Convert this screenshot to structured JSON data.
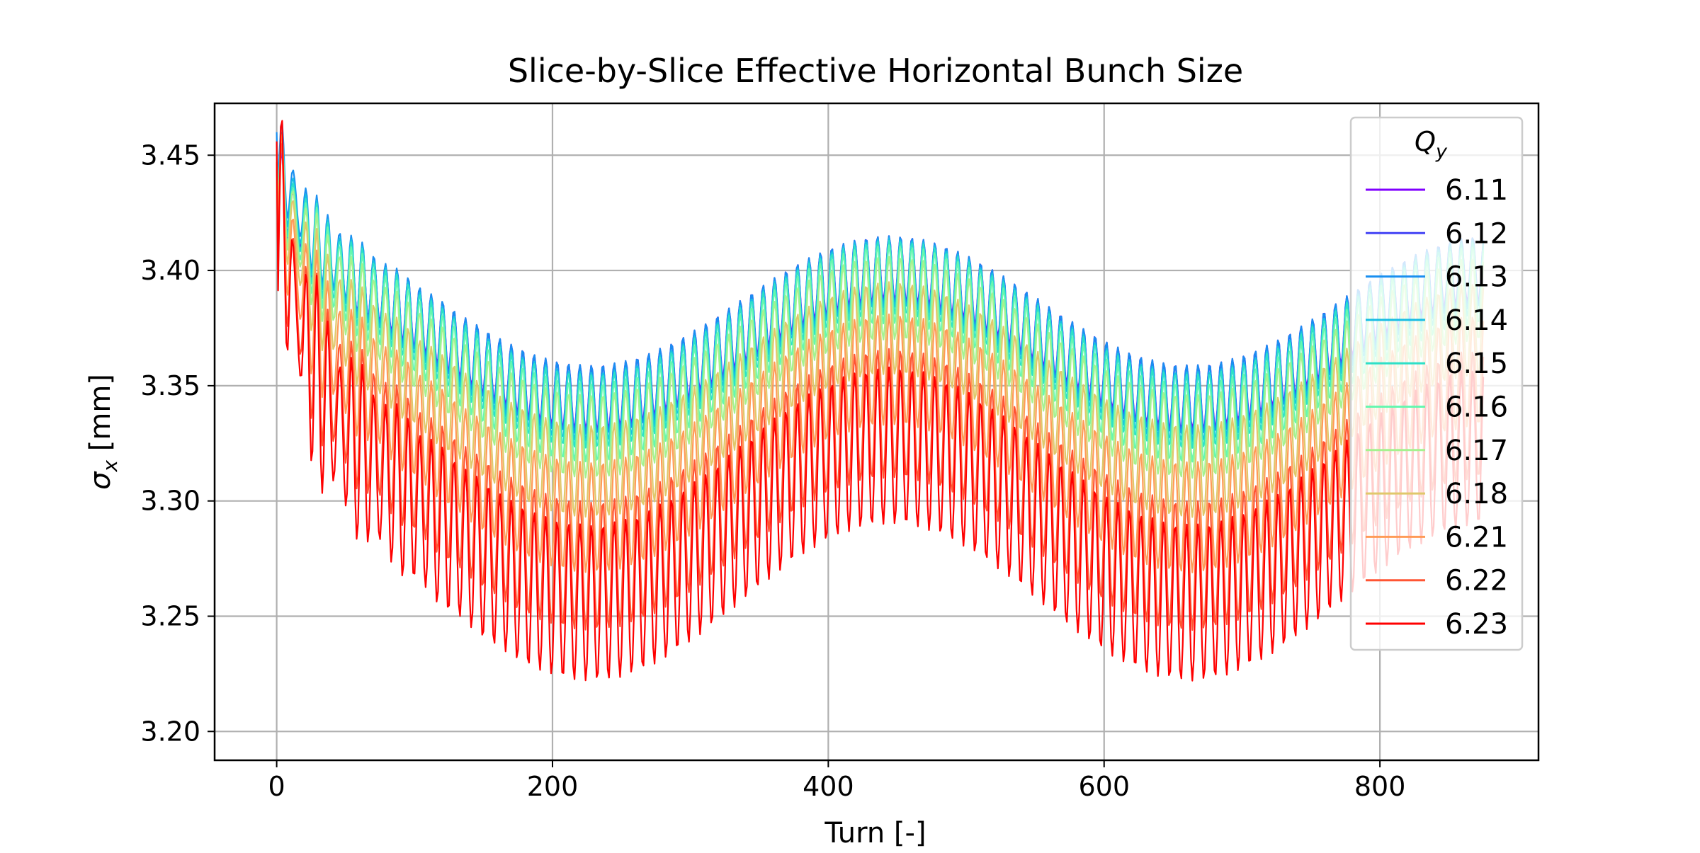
{
  "chart_data": {
    "type": "line",
    "title": "Slice-by-Slice Effective Horizontal Bunch Size",
    "xlabel": "Turn [-]",
    "ylabel": "σ",
    "ylabel_sub": "x",
    "ylabel_unit": " [mm]",
    "xlim": [
      -45,
      915
    ],
    "ylim": [
      3.1875,
      3.4725
    ],
    "xticks": [
      0,
      200,
      400,
      600,
      800
    ],
    "yticks": [
      3.2,
      3.25,
      3.3,
      3.35,
      3.4,
      3.45
    ],
    "xtick_labels": [
      "0",
      "200",
      "400",
      "600",
      "800"
    ],
    "ytick_labels": [
      "3.20",
      "3.25",
      "3.30",
      "3.35",
      "3.40",
      "3.45"
    ],
    "grid": true,
    "legend": {
      "title": "Q",
      "title_sub": "y",
      "placement": "top-right"
    },
    "turns": 875,
    "oscillation_period_turns": 8.3,
    "series": [
      {
        "name": "6.11",
        "color": "#8000ff",
        "start": 3.445,
        "slow_mean": 3.373,
        "slow_amp": 0.028,
        "fast_amp": 0.014,
        "init_amp": 0.012
      },
      {
        "name": "6.12",
        "color": "#4444f5",
        "start": 3.448,
        "slow_mean": 3.372,
        "slow_amp": 0.028,
        "fast_amp": 0.014,
        "init_amp": 0.012
      },
      {
        "name": "6.13",
        "color": "#1a8ff0",
        "start": 3.46,
        "slow_mean": 3.372,
        "slow_amp": 0.028,
        "fast_amp": 0.015,
        "init_amp": 0.013
      },
      {
        "name": "6.14",
        "color": "#18bde3",
        "start": 3.455,
        "slow_mean": 3.37,
        "slow_amp": 0.029,
        "fast_amp": 0.015,
        "init_amp": 0.013
      },
      {
        "name": "6.15",
        "color": "#2ee0c8",
        "start": 3.452,
        "slow_mean": 3.368,
        "slow_amp": 0.029,
        "fast_amp": 0.016,
        "init_amp": 0.014
      },
      {
        "name": "6.16",
        "color": "#66f7b0",
        "start": 3.45,
        "slow_mean": 3.364,
        "slow_amp": 0.03,
        "fast_amp": 0.017,
        "init_amp": 0.015
      },
      {
        "name": "6.17",
        "color": "#a6f28f",
        "start": 3.452,
        "slow_mean": 3.358,
        "slow_amp": 0.03,
        "fast_amp": 0.018,
        "init_amp": 0.017
      },
      {
        "name": "6.18",
        "color": "#e0c86b",
        "start": 3.453,
        "slow_mean": 3.344,
        "slow_amp": 0.031,
        "fast_amp": 0.02,
        "init_amp": 0.02
      },
      {
        "name": "6.21",
        "color": "#ff9b57",
        "start": 3.45,
        "slow_mean": 3.325,
        "slow_amp": 0.032,
        "fast_amp": 0.024,
        "init_amp": 0.025
      },
      {
        "name": "6.22",
        "color": "#ff5533",
        "start": 3.447,
        "slow_mean": 3.305,
        "slow_amp": 0.033,
        "fast_amp": 0.028,
        "init_amp": 0.03
      },
      {
        "name": "6.23",
        "color": "#ff0000",
        "start": 3.456,
        "slow_mean": 3.29,
        "slow_amp": 0.034,
        "fast_amp": 0.034,
        "init_amp": 0.045
      }
    ]
  }
}
